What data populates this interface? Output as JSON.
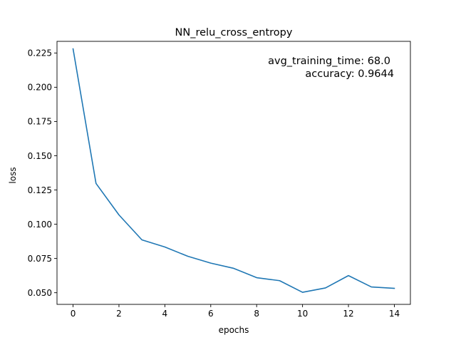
{
  "chart_data": {
    "type": "line",
    "title": "NN_relu_cross_entropy",
    "xlabel": "epochs",
    "ylabel": "loss",
    "xlim": [
      -0.7,
      14.7
    ],
    "ylim": [
      0.0415,
      0.2335
    ],
    "x_ticks": [
      0,
      2,
      4,
      6,
      8,
      10,
      12,
      14
    ],
    "x_tick_labels": [
      "0",
      "2",
      "4",
      "6",
      "8",
      "10",
      "12",
      "14"
    ],
    "y_ticks": [
      0.05,
      0.075,
      0.1,
      0.125,
      0.15,
      0.175,
      0.2,
      0.225
    ],
    "y_tick_labels": [
      "0.050",
      "0.075",
      "0.100",
      "0.125",
      "0.150",
      "0.175",
      "0.200",
      "0.225"
    ],
    "grid": false,
    "line_color": "#1f77b4",
    "series": [
      {
        "x": [
          0,
          1,
          2,
          3,
          4,
          5,
          6,
          7,
          8,
          9,
          10,
          11,
          12,
          13,
          14
        ],
        "y": [
          0.228,
          0.1298,
          0.1068,
          0.0886,
          0.0834,
          0.0766,
          0.0716,
          0.0678,
          0.061,
          0.0588,
          0.0503,
          0.0535,
          0.0625,
          0.0542,
          0.0532
        ]
      }
    ],
    "annotations": [
      "avg_training_time: 68.0",
      "accuracy: 0.9644"
    ]
  }
}
